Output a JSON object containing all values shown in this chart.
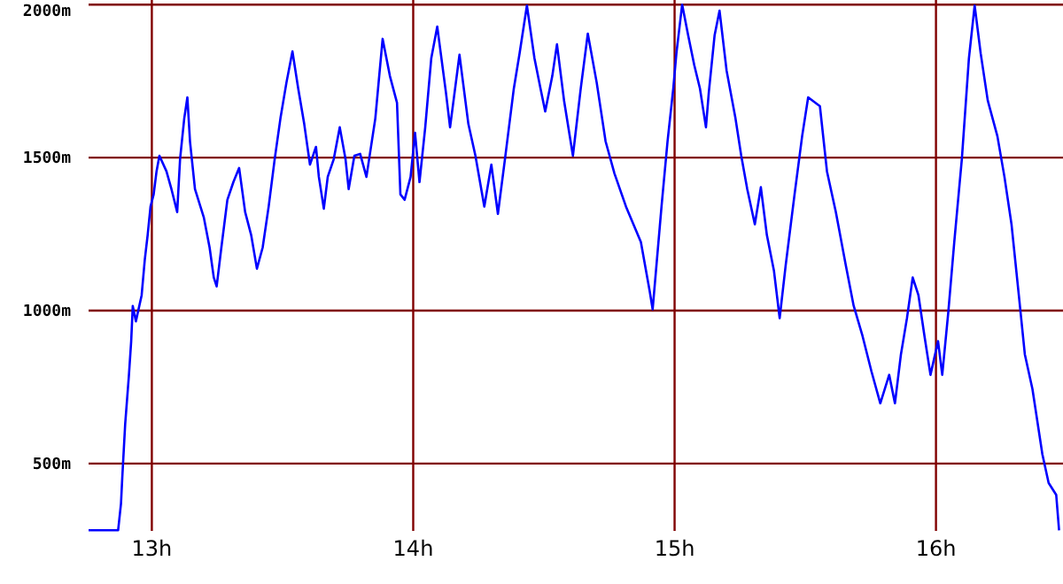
{
  "chart_data": {
    "type": "line",
    "grid": true,
    "marker": "none",
    "line_style": "solid",
    "xlim": [
      12.758,
      16.486
    ],
    "ylim": [
      280,
      2015
    ],
    "xticks": [
      {
        "value": 13,
        "label": "13h"
      },
      {
        "value": 14,
        "label": "14h"
      },
      {
        "value": 15,
        "label": "15h"
      },
      {
        "value": 16,
        "label": "16h"
      }
    ],
    "yticks": [
      {
        "value": 500,
        "label": "500m"
      },
      {
        "value": 1000,
        "label": "1000m"
      },
      {
        "value": 1500,
        "label": "1500m"
      },
      {
        "value": 2000,
        "label": "2000m"
      }
    ],
    "series": [
      {
        "color": "#0000ff",
        "x": [
          12.758,
          12.871,
          12.882,
          12.887,
          12.898,
          12.912,
          12.921,
          12.927,
          12.939,
          12.961,
          12.973,
          12.984,
          12.995,
          13.007,
          13.018,
          13.029,
          13.056,
          13.075,
          13.097,
          13.108,
          13.124,
          13.136,
          13.146,
          13.165,
          13.199,
          13.221,
          13.237,
          13.248,
          13.266,
          13.289,
          13.312,
          13.334,
          13.357,
          13.38,
          13.402,
          13.424,
          13.447,
          13.47,
          13.492,
          13.515,
          13.538,
          13.56,
          13.583,
          13.605,
          13.628,
          13.639,
          13.658,
          13.673,
          13.696,
          13.719,
          13.741,
          13.753,
          13.775,
          13.797,
          13.821,
          13.855,
          13.883,
          13.911,
          13.938,
          13.951,
          13.967,
          13.99,
          14.007,
          14.024,
          14.046,
          14.069,
          14.092,
          14.125,
          14.141,
          14.177,
          14.211,
          14.238,
          14.272,
          14.299,
          14.324,
          14.351,
          14.385,
          14.407,
          14.435,
          14.464,
          14.487,
          14.505,
          14.532,
          14.55,
          14.577,
          14.611,
          14.641,
          14.668,
          14.702,
          14.736,
          14.77,
          14.814,
          14.871,
          14.905,
          14.916,
          14.95,
          14.973,
          14.995,
          15.007,
          15.029,
          15.052,
          15.075,
          15.097,
          15.12,
          15.131,
          15.153,
          15.172,
          15.199,
          15.233,
          15.255,
          15.278,
          15.307,
          15.33,
          15.353,
          15.38,
          15.402,
          15.425,
          15.459,
          15.488,
          15.511,
          15.556,
          15.583,
          15.617,
          15.655,
          15.685,
          15.719,
          15.753,
          15.787,
          15.821,
          15.843,
          15.866,
          15.889,
          15.911,
          15.933,
          15.956,
          15.979,
          16.008,
          16.024,
          16.047,
          16.07,
          16.099,
          16.126,
          16.148,
          16.171,
          16.198,
          16.235,
          16.262,
          16.289,
          16.317,
          16.34,
          16.369,
          16.407,
          16.431,
          16.46,
          16.471
        ],
        "values": [
          282,
          282,
          369,
          456,
          629,
          785,
          900,
          1015,
          965,
          1050,
          1166,
          1247,
          1340,
          1380,
          1455,
          1506,
          1455,
          1397,
          1322,
          1495,
          1628,
          1697,
          1553,
          1397,
          1304,
          1206,
          1108,
          1079,
          1206,
          1362,
          1420,
          1466,
          1322,
          1247,
          1137,
          1206,
          1340,
          1495,
          1628,
          1745,
          1847,
          1726,
          1610,
          1477,
          1535,
          1437,
          1333,
          1437,
          1495,
          1599,
          1495,
          1397,
          1506,
          1512,
          1437,
          1628,
          1888,
          1766,
          1679,
          1380,
          1362,
          1437,
          1581,
          1420,
          1599,
          1824,
          1928,
          1714,
          1599,
          1836,
          1610,
          1506,
          1340,
          1477,
          1316,
          1495,
          1726,
          1841,
          1997,
          1824,
          1726,
          1651,
          1766,
          1870,
          1687,
          1506,
          1726,
          1905,
          1745,
          1553,
          1448,
          1340,
          1224,
          1062,
          1004,
          1340,
          1553,
          1726,
          1841,
          2000,
          1899,
          1803,
          1726,
          1599,
          1714,
          1899,
          1980,
          1784,
          1628,
          1506,
          1397,
          1282,
          1403,
          1247,
          1131,
          975,
          1148,
          1380,
          1570,
          1697,
          1668,
          1455,
          1322,
          1148,
          1016,
          917,
          802,
          697,
          790,
          697,
          857,
          975,
          1108,
          1050,
          917,
          790,
          900,
          790,
          993,
          1224,
          1495,
          1824,
          1997,
          1841,
          1687,
          1570,
          1437,
          1282,
          1050,
          857,
          744,
          531,
          437,
          398,
          282
        ]
      }
    ]
  }
}
